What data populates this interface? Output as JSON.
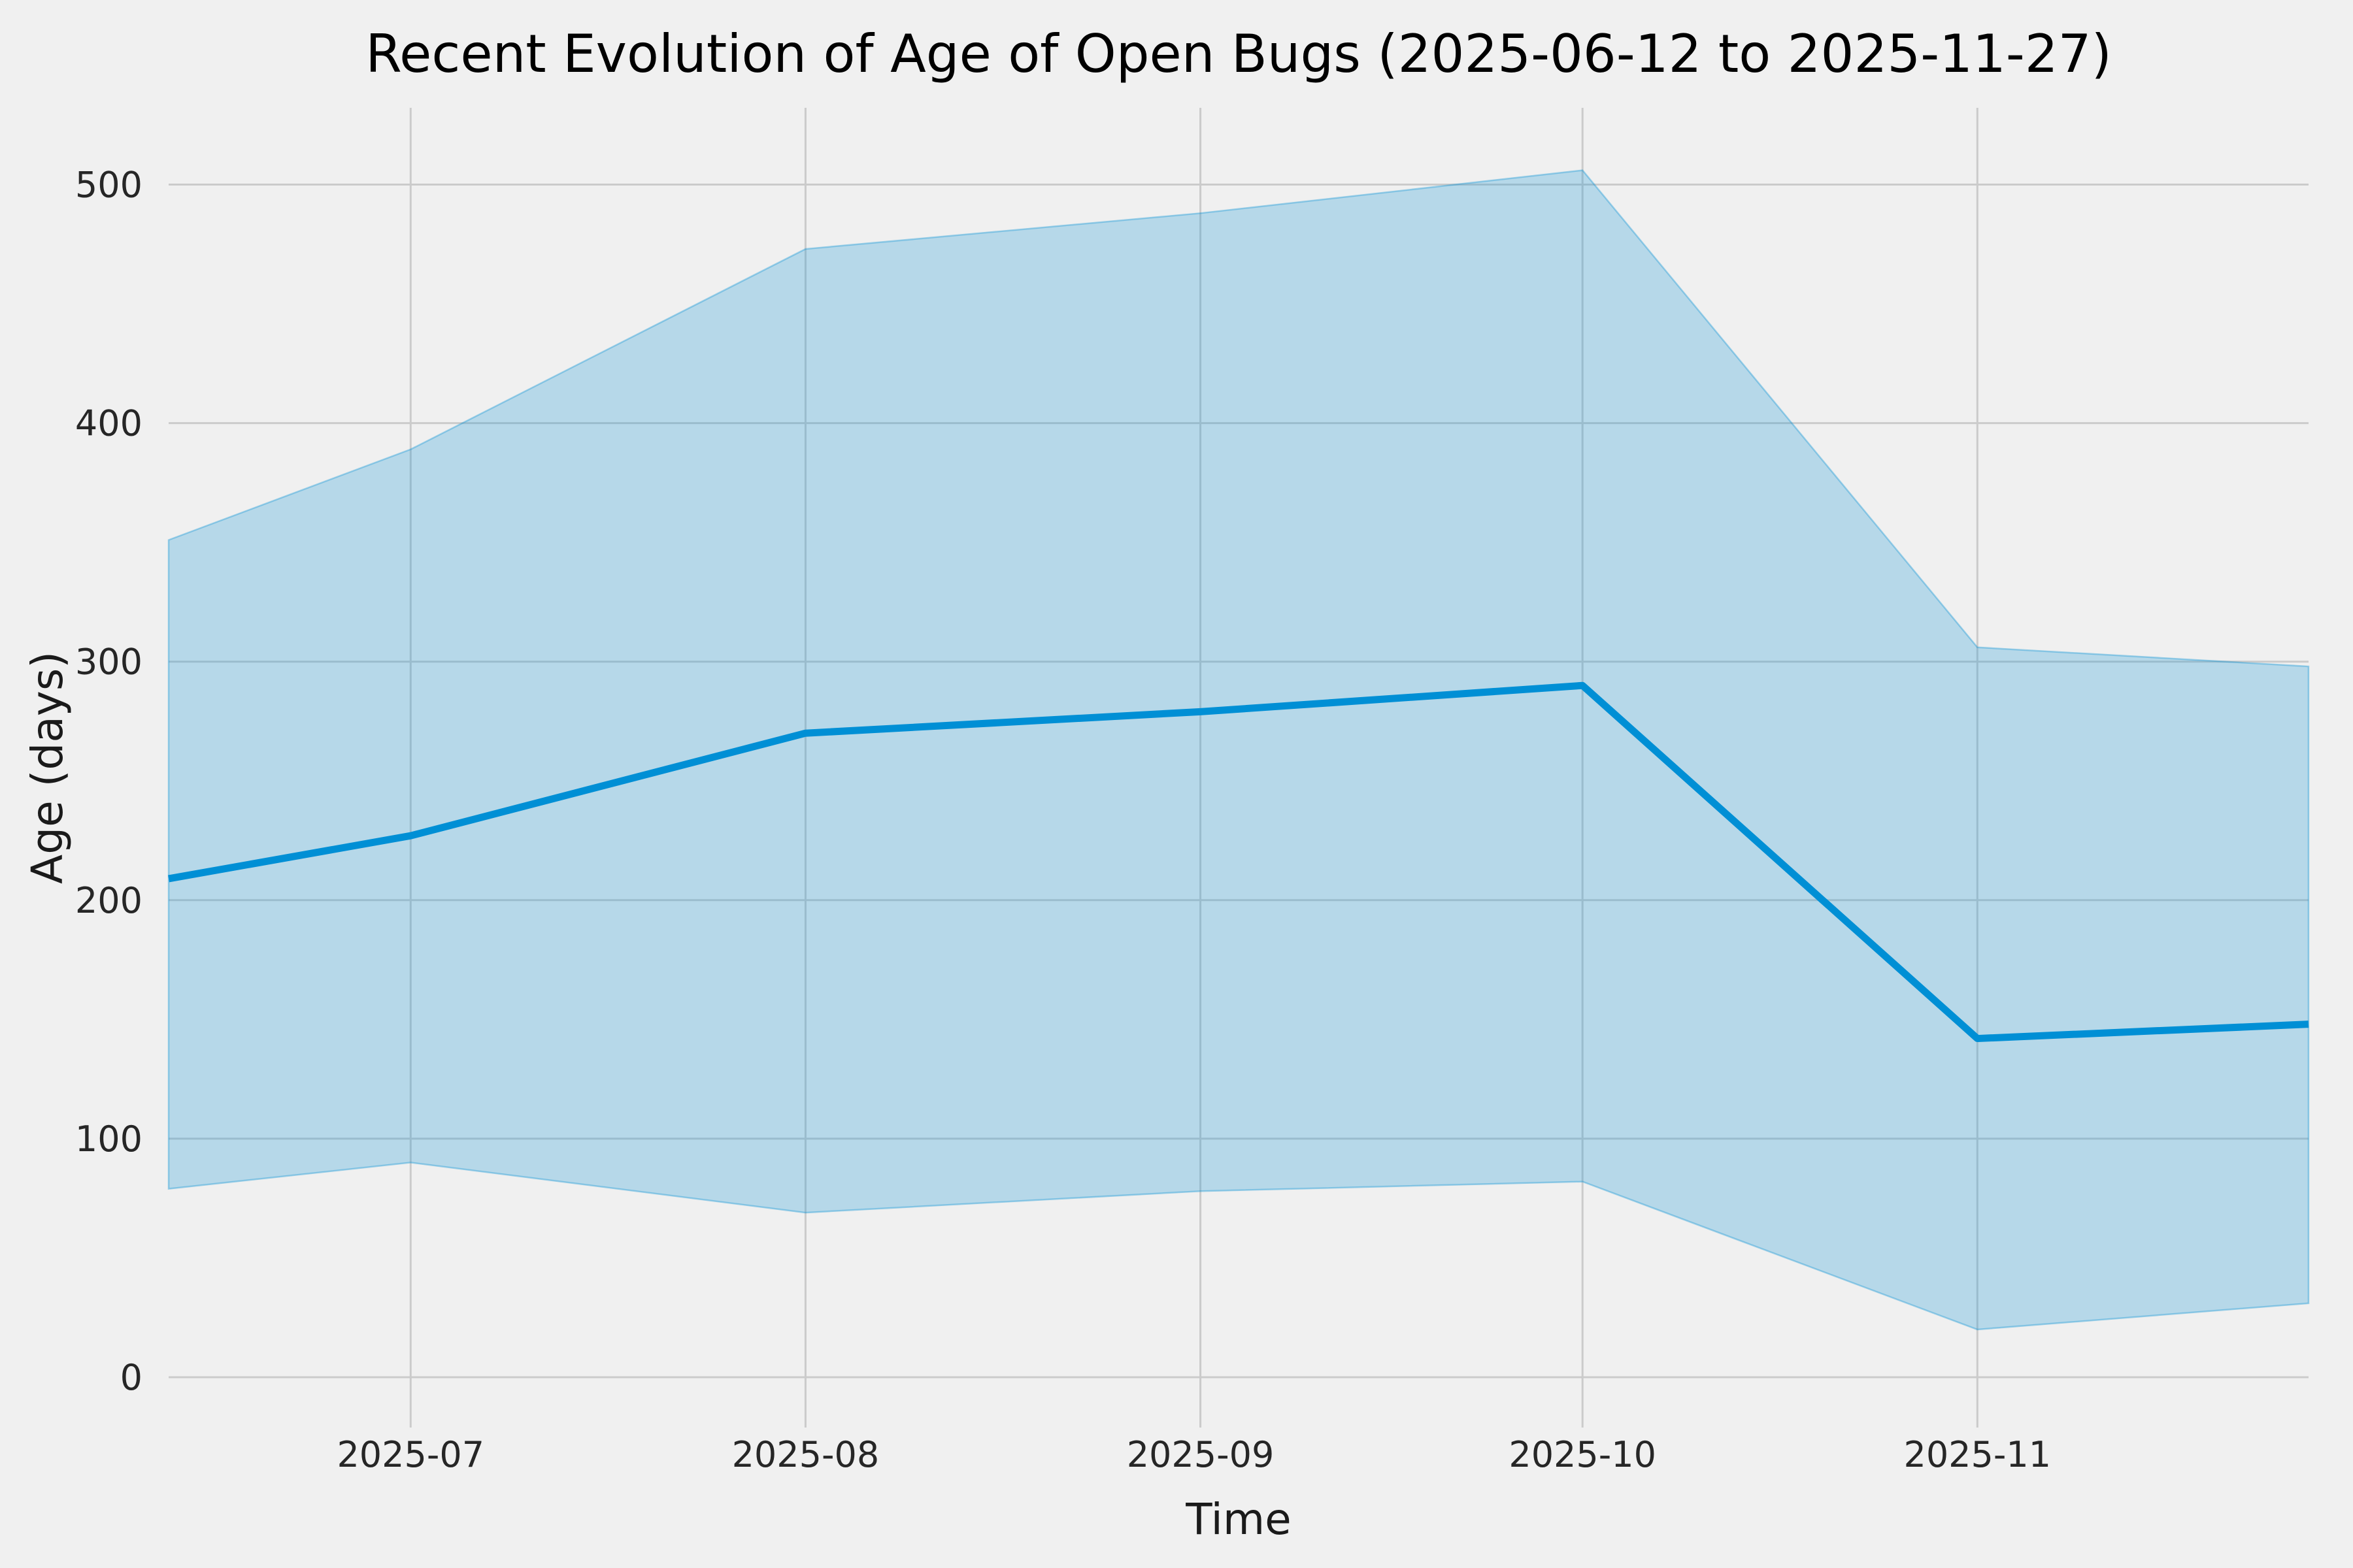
{
  "figure": {
    "title": "Recent Evolution of Age of Open Bugs (2025-06-12 to 2025-11-27)",
    "background_color": "#f0f0f0"
  },
  "chart_data": {
    "type": "area",
    "title": "Recent Evolution of Age of Open Bugs (2025-06-12 to 2025-11-27)",
    "xlabel": "Time",
    "ylabel": "Age (days)",
    "x_dates": [
      "2025-06-12",
      "2025-07-01",
      "2025-08-01",
      "2025-09-01",
      "2025-10-01",
      "2025-11-01",
      "2025-11-27"
    ],
    "x_day_offsets": [
      0,
      19,
      50,
      81,
      111,
      142,
      168
    ],
    "series": [
      {
        "name": "mean-age",
        "values": [
          209,
          227,
          270,
          279,
          290,
          142,
          148
        ]
      },
      {
        "name": "band-upper",
        "values": [
          351,
          389,
          473,
          488,
          506,
          306,
          298
        ]
      },
      {
        "name": "band-lower",
        "values": [
          79,
          90,
          69,
          78,
          82,
          20,
          31
        ]
      }
    ],
    "x_ticks": {
      "day_offsets": [
        19,
        50,
        81,
        111,
        142
      ],
      "labels": [
        "2025-07",
        "2025-08",
        "2025-09",
        "2025-10",
        "2025-11"
      ]
    },
    "y_ticks": {
      "values": [
        0,
        100,
        200,
        300,
        400,
        500
      ],
      "labels": [
        "0",
        "100",
        "200",
        "300",
        "400",
        "500"
      ]
    },
    "xlim_days": [
      0,
      168
    ],
    "ylim": [
      -21,
      532
    ],
    "grid": true,
    "legend": "none",
    "colors": {
      "line": "#008fd5",
      "band_fill": "rgba(0,143,213,0.24)",
      "band_edge": "rgba(0,143,213,0.35)",
      "grid": "#cbcbcb",
      "background": "#f0f0f0",
      "tick_text": "#262626",
      "title_text": "#000000"
    }
  }
}
